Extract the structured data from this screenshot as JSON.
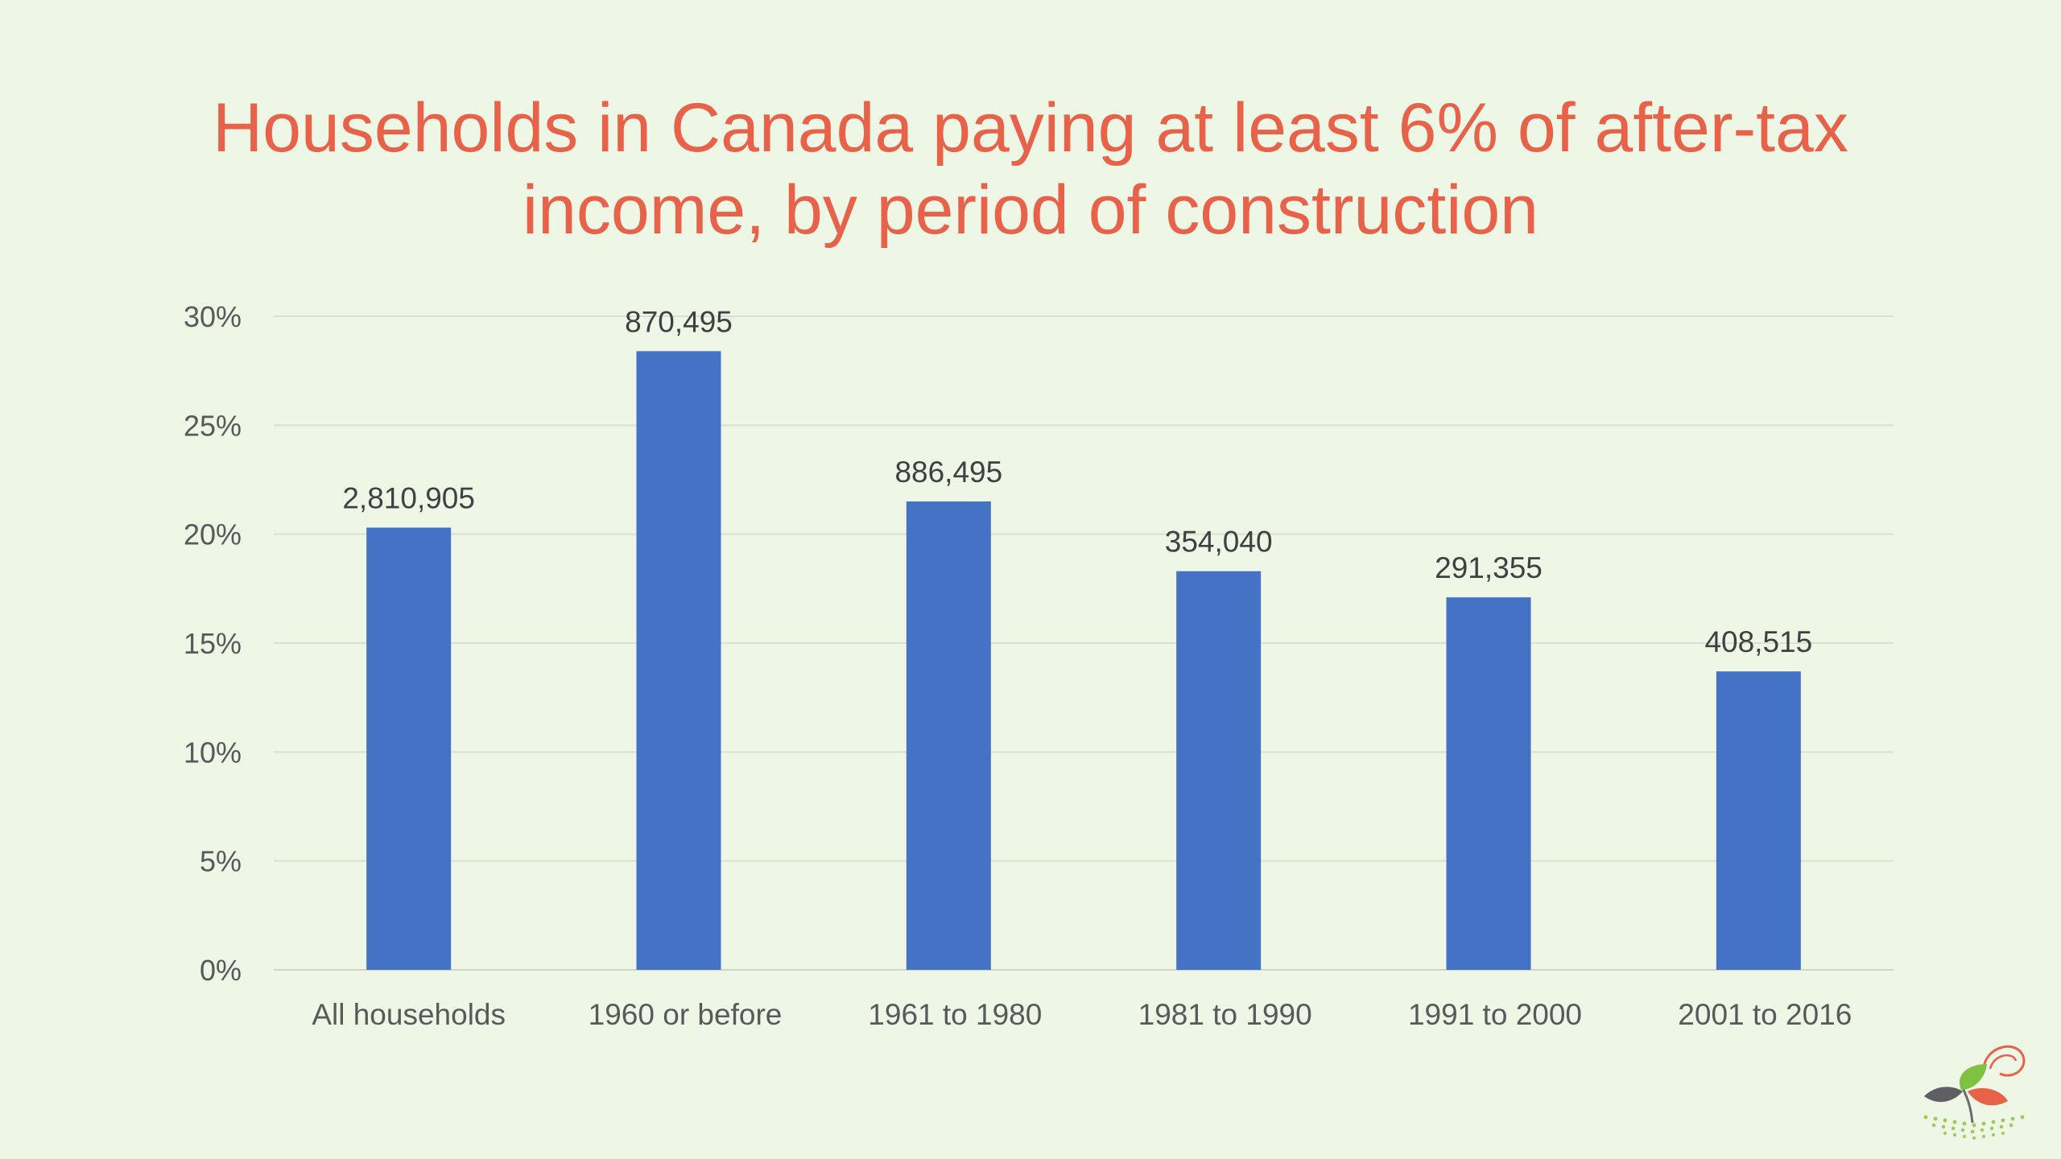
{
  "slide": {
    "title_line1": "Households in Canada paying at least 6% of after-tax",
    "title_line2": "income, by period of construction"
  },
  "colors": {
    "background": "#eef6e6",
    "title": "#e8624a",
    "bar": "#4472c4",
    "axis_text": "#595959",
    "data_label": "#404040",
    "gridline": "#d9dfd3"
  },
  "logo": {
    "icon": "sprout-leaves-logo-icon"
  },
  "chart_data": {
    "type": "bar",
    "title": "Households in Canada paying at least 6% of after-tax income, by period of construction",
    "categories": [
      "All households",
      "1960 or before",
      "1961 to 1980",
      "1981 to 1990",
      "1991 to 2000",
      "2001 to 2016"
    ],
    "values": [
      20.3,
      28.4,
      21.5,
      18.3,
      17.1,
      13.7
    ],
    "data_labels": [
      "2,810,905",
      "870,495",
      "886,495",
      "354,040",
      "291,355",
      "408,515"
    ],
    "xlabel": "",
    "ylabel": "",
    "ylim": [
      0,
      30
    ],
    "yticks": [
      0,
      5,
      10,
      15,
      20,
      25,
      30
    ],
    "ytick_labels": [
      "0%",
      "5%",
      "10%",
      "15%",
      "20%",
      "25%",
      "30%"
    ],
    "grid": true,
    "legend": "none"
  }
}
